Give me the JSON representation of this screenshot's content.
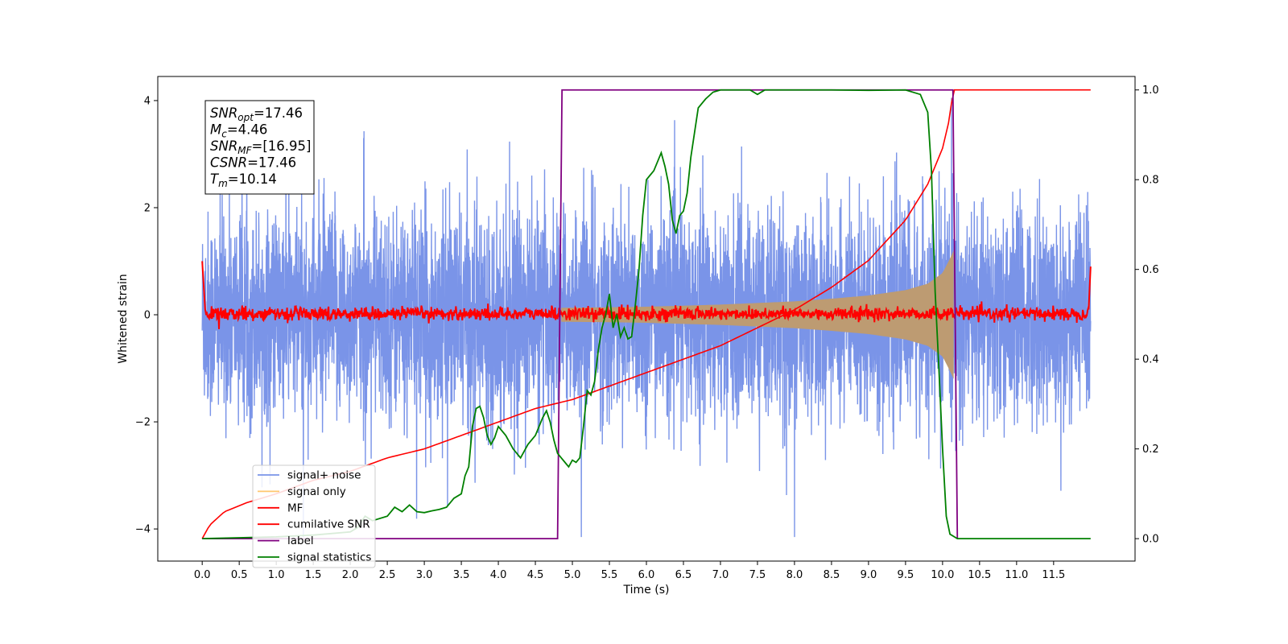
{
  "chart_data": {
    "type": "line",
    "xlabel": "Time (s)",
    "ylabel": "Whitened strain",
    "xlim": [
      -0.6,
      12.6
    ],
    "ylim_left": [
      -4.6,
      4.45
    ],
    "ylim_right": [
      -0.05,
      1.03
    ],
    "x_ticks": [
      0.0,
      0.5,
      1.0,
      1.5,
      2.0,
      2.5,
      3.0,
      3.5,
      4.0,
      4.5,
      5.0,
      5.5,
      6.0,
      6.5,
      7.0,
      7.5,
      8.0,
      8.5,
      9.0,
      9.5,
      10.0,
      10.5,
      11.0,
      11.5
    ],
    "x_tick_labels": [
      "0.0",
      "0.5",
      "1.0",
      "1.5",
      "2.0",
      "2.5",
      "3.0",
      "3.5",
      "4.0",
      "4.5",
      "5.0",
      "5.5",
      "6.0",
      "6.5",
      "7.0",
      "7.5",
      "8.0",
      "8.5",
      "9.0",
      "9.5",
      "10.0",
      "10.5",
      "11.0",
      "11.5"
    ],
    "y_ticks_left": [
      -4,
      -2,
      0,
      2,
      4
    ],
    "y_tick_labels_left": [
      "−4",
      "−2",
      "0",
      "2",
      "4"
    ],
    "y_ticks_right": [
      0.0,
      0.2,
      0.4,
      0.6,
      0.8,
      1.0
    ],
    "y_tick_labels_right": [
      "0.0",
      "0.2",
      "0.4",
      "0.6",
      "0.8",
      "1.0"
    ],
    "grid": false,
    "legend_position": "lower-left",
    "annotation_lines": [
      {
        "var": "SNR",
        "sub": "opt",
        "value": "=17.46"
      },
      {
        "var": "M",
        "sub": "c",
        "value": "=4.46"
      },
      {
        "var": "SNR",
        "sub": "MF",
        "value": "=[16.95]"
      },
      {
        "var": "CSNR",
        "sub": "",
        "value": "=17.46"
      },
      {
        "var": "T",
        "sub": "m",
        "value": "=10.14"
      }
    ],
    "series": [
      {
        "name": "signal+ noise",
        "color": "#7a94e8",
        "axis": "left",
        "style": "noise",
        "x_range": [
          0.0,
          12.0
        ],
        "typical_amplitude": 1.0,
        "max_value": 4.05,
        "min_value": -4.15
      },
      {
        "name": "signal only",
        "color": "#ffc76e",
        "axis": "left",
        "style": "chirp",
        "x_range": [
          4.85,
          10.15
        ],
        "envelope": {
          "t": [
            4.85,
            5.5,
            6.0,
            6.5,
            7.0,
            7.5,
            8.0,
            8.5,
            9.0,
            9.5,
            9.8,
            10.0,
            10.1,
            10.15
          ],
          "amp": [
            0.13,
            0.14,
            0.15,
            0.17,
            0.19,
            0.22,
            0.25,
            0.3,
            0.36,
            0.46,
            0.58,
            0.78,
            1.05,
            1.2
          ]
        }
      },
      {
        "name": "MF",
        "color": "#ff0000",
        "axis": "left",
        "style": "mf",
        "x_range": [
          0.0,
          12.0
        ],
        "baseline": 0.02,
        "jitter": 0.06,
        "start_value": 1.0,
        "end_value": 0.9
      },
      {
        "name": "cumilative SNR",
        "color": "#ff0000",
        "axis": "right",
        "x": [
          0.0,
          0.1,
          0.3,
          0.6,
          1.0,
          1.5,
          2.0,
          2.5,
          3.0,
          3.5,
          4.0,
          4.5,
          5.0,
          5.5,
          6.0,
          6.5,
          7.0,
          7.5,
          8.0,
          8.5,
          9.0,
          9.5,
          9.8,
          10.0,
          10.1,
          10.14,
          10.2,
          12.0
        ],
        "y": [
          0.0,
          0.03,
          0.06,
          0.08,
          0.1,
          0.13,
          0.15,
          0.18,
          0.2,
          0.23,
          0.26,
          0.29,
          0.31,
          0.34,
          0.37,
          0.4,
          0.43,
          0.47,
          0.51,
          0.56,
          0.62,
          0.71,
          0.79,
          0.87,
          0.94,
          1.0,
          1.0,
          1.0
        ]
      },
      {
        "name": "label",
        "color": "#800080",
        "axis": "right",
        "x": [
          0.0,
          4.8,
          4.86,
          10.14,
          10.2
        ],
        "y": [
          0.0,
          0.0,
          1.0,
          1.0,
          0.0
        ]
      },
      {
        "name": "signal statistics",
        "color": "#008000",
        "axis": "right",
        "x": [
          0.0,
          0.5,
          1.0,
          1.5,
          2.0,
          2.1,
          2.2,
          2.3,
          2.5,
          2.6,
          2.7,
          2.8,
          2.9,
          3.0,
          3.1,
          3.2,
          3.3,
          3.4,
          3.5,
          3.55,
          3.6,
          3.65,
          3.7,
          3.75,
          3.8,
          3.85,
          3.9,
          3.95,
          4.0,
          4.1,
          4.2,
          4.3,
          4.4,
          4.5,
          4.6,
          4.65,
          4.7,
          4.75,
          4.8,
          4.85,
          4.9,
          4.95,
          5.0,
          5.05,
          5.1,
          5.15,
          5.2,
          5.25,
          5.3,
          5.35,
          5.4,
          5.45,
          5.5,
          5.55,
          5.6,
          5.65,
          5.7,
          5.75,
          5.8,
          5.85,
          5.9,
          5.95,
          6.0,
          6.05,
          6.1,
          6.15,
          6.2,
          6.25,
          6.3,
          6.35,
          6.4,
          6.45,
          6.5,
          6.55,
          6.6,
          6.7,
          6.8,
          6.9,
          7.0,
          7.2,
          7.4,
          7.5,
          7.6,
          7.8,
          8.0,
          8.5,
          9.0,
          9.5,
          9.7,
          9.8,
          9.85,
          9.9,
          9.95,
          10.0,
          10.05,
          10.1,
          10.2,
          10.5,
          11.0,
          11.5,
          12.0
        ],
        "y": [
          0.0,
          0.002,
          0.004,
          0.008,
          0.015,
          0.025,
          0.05,
          0.04,
          0.05,
          0.07,
          0.06,
          0.075,
          0.06,
          0.058,
          0.062,
          0.065,
          0.07,
          0.09,
          0.1,
          0.14,
          0.16,
          0.25,
          0.29,
          0.295,
          0.27,
          0.23,
          0.21,
          0.225,
          0.25,
          0.23,
          0.2,
          0.18,
          0.21,
          0.23,
          0.27,
          0.285,
          0.26,
          0.22,
          0.19,
          0.18,
          0.17,
          0.16,
          0.175,
          0.17,
          0.18,
          0.25,
          0.33,
          0.32,
          0.35,
          0.42,
          0.47,
          0.5,
          0.545,
          0.47,
          0.5,
          0.45,
          0.47,
          0.445,
          0.45,
          0.52,
          0.6,
          0.72,
          0.8,
          0.81,
          0.82,
          0.84,
          0.86,
          0.83,
          0.79,
          0.71,
          0.68,
          0.72,
          0.73,
          0.77,
          0.85,
          0.96,
          0.98,
          0.995,
          1.0,
          1.0,
          1.0,
          0.99,
          1.0,
          1.0,
          1.0,
          1.0,
          0.999,
          1.0,
          0.99,
          0.95,
          0.82,
          0.55,
          0.38,
          0.2,
          0.05,
          0.01,
          0.0,
          0.0,
          0.0,
          0.0,
          0.0
        ]
      }
    ]
  }
}
